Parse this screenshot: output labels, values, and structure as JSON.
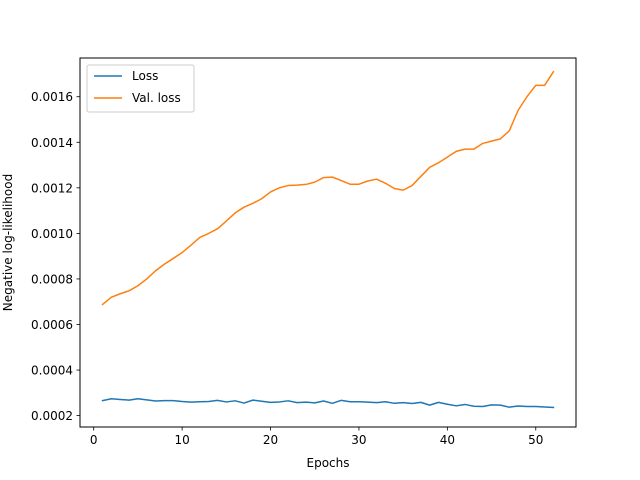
{
  "chart_data": {
    "type": "line",
    "title": "",
    "xlabel": "Epochs",
    "ylabel": "Negative log-likelihood",
    "xlim": [
      -1.55,
      54.55
    ],
    "ylim": [
      0.00015,
      0.00177
    ],
    "xticks": [
      0,
      10,
      20,
      30,
      40,
      50
    ],
    "xtick_labels": [
      "0",
      "10",
      "20",
      "30",
      "40",
      "50"
    ],
    "yticks": [
      0.0002,
      0.0004,
      0.0006,
      0.0008,
      0.001,
      0.0012,
      0.0014,
      0.0016
    ],
    "ytick_labels": [
      "0.0002",
      "0.0004",
      "0.0006",
      "0.0008",
      "0.0010",
      "0.0012",
      "0.0014",
      "0.0016"
    ],
    "grid": false,
    "legend_position": "top-left",
    "x": [
      1,
      2,
      3,
      4,
      5,
      6,
      7,
      8,
      9,
      10,
      11,
      12,
      13,
      14,
      15,
      16,
      17,
      18,
      19,
      20,
      21,
      22,
      23,
      24,
      25,
      26,
      27,
      28,
      29,
      30,
      31,
      32,
      33,
      34,
      35,
      36,
      37,
      38,
      39,
      40,
      41,
      42,
      43,
      44,
      45,
      46,
      47,
      48,
      49,
      50,
      51,
      52
    ],
    "series": [
      {
        "name": "Loss",
        "color": "#1f77b4",
        "values": [
          0.000266,
          0.000274,
          0.000271,
          0.000268,
          0.000274,
          0.000269,
          0.000264,
          0.000266,
          0.000266,
          0.000262,
          0.000259,
          0.000261,
          0.000262,
          0.000267,
          0.00026,
          0.000265,
          0.000255,
          0.000268,
          0.000263,
          0.000258,
          0.00026,
          0.000265,
          0.000257,
          0.000259,
          0.000256,
          0.000264,
          0.000254,
          0.000267,
          0.000261,
          0.000261,
          0.000259,
          0.000257,
          0.000261,
          0.000254,
          0.000257,
          0.000253,
          0.000258,
          0.000246,
          0.000258,
          0.00025,
          0.000243,
          0.000249,
          0.000241,
          0.00024,
          0.000247,
          0.000246,
          0.000237,
          0.000242,
          0.00024,
          0.00024,
          0.000238,
          0.000236
        ]
      },
      {
        "name": "Val. loss",
        "color": "#ff7f0e",
        "values": [
          0.000688,
          0.00072,
          0.000735,
          0.000748,
          0.00077,
          0.0008,
          0.000836,
          0.000865,
          0.00089,
          0.000916,
          0.000948,
          0.000982,
          0.001,
          0.00102,
          0.001054,
          0.00109,
          0.001115,
          0.001132,
          0.001152,
          0.001182,
          0.0012,
          0.00121,
          0.001212,
          0.001215,
          0.001225,
          0.001245,
          0.001247,
          0.001232,
          0.001216,
          0.001216,
          0.00123,
          0.001238,
          0.00122,
          0.001197,
          0.00119,
          0.00121,
          0.00125,
          0.00129,
          0.00131,
          0.001335,
          0.00136,
          0.00137,
          0.00137,
          0.001395,
          0.001405,
          0.001415,
          0.00145,
          0.00154,
          0.0016,
          0.00165,
          0.00165,
          0.00171
        ]
      }
    ]
  }
}
